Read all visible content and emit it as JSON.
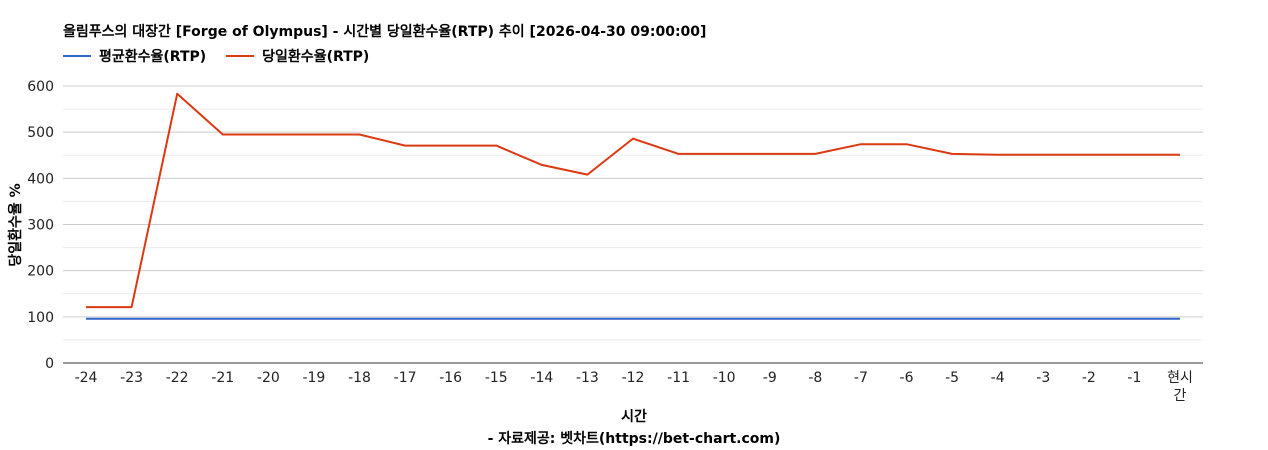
{
  "chart_data": {
    "type": "line",
    "title": "올림푸스의 대장간 [Forge of Olympus] - 시간별 당일환수율(RTP) 추이 [2026-04-30 09:00:00]",
    "xlabel": "시간",
    "ylabel": "당일환수율 %",
    "source": "- 자료제공: 벳차트(https://bet-chart.com)",
    "categories": [
      "-24",
      "-23",
      "-22",
      "-21",
      "-20",
      "-19",
      "-18",
      "-17",
      "-16",
      "-15",
      "-14",
      "-13",
      "-12",
      "-11",
      "-10",
      "-9",
      "-8",
      "-7",
      "-6",
      "-5",
      "-4",
      "-3",
      "-2",
      "-1",
      "현시간"
    ],
    "ylim": [
      0,
      600
    ],
    "yticks": [
      0,
      100,
      200,
      300,
      400,
      500,
      600
    ],
    "grid": true,
    "legend_position": "top-left",
    "series": [
      {
        "name": "평균환수율(RTP)",
        "color": "#3366cc",
        "values": [
          96,
          96,
          96,
          96,
          96,
          96,
          96,
          96,
          96,
          96,
          96,
          96,
          96,
          96,
          96,
          96,
          96,
          96,
          96,
          96,
          96,
          96,
          96,
          96,
          96
        ]
      },
      {
        "name": "당일환수율(RTP)",
        "color": "#dc3912",
        "values": [
          121,
          121,
          583,
          495,
          495,
          495,
          495,
          471,
          471,
          471,
          429,
          408,
          486,
          453,
          453,
          453,
          453,
          474,
          474,
          453,
          451,
          451,
          451,
          451,
          451
        ]
      }
    ]
  }
}
